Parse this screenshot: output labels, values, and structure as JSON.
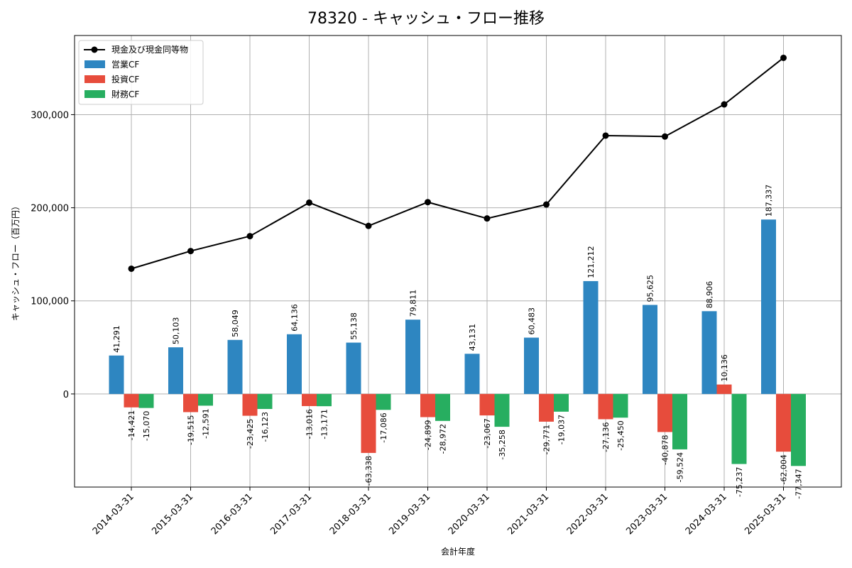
{
  "chart_data": {
    "type": "bar",
    "title": "78320 - キャッシュ・フロー推移",
    "xlabel": "会計年度",
    "ylabel": "キャッシュ・フロー（百万円）",
    "ylim": [
      -100000,
      385000
    ],
    "yticks": [
      0,
      100000,
      200000,
      300000
    ],
    "ytick_labels": [
      "0",
      "100,000",
      "200,000",
      "300,000"
    ],
    "grid": true,
    "legend_position": "top-left",
    "categories": [
      "2014-03-31",
      "2015-03-31",
      "2016-03-31",
      "2017-03-31",
      "2018-03-31",
      "2019-03-31",
      "2020-03-31",
      "2021-03-31",
      "2022-03-31",
      "2023-03-31",
      "2024-03-31",
      "2025-03-31"
    ],
    "line": {
      "name": "現金及び現金同等物",
      "color": "#000000",
      "values": [
        134500,
        153500,
        169500,
        205500,
        180500,
        206000,
        188500,
        203500,
        277500,
        276500,
        311000,
        361000
      ]
    },
    "series": [
      {
        "name": "営業CF",
        "color": "#2e86c1",
        "values": [
          41291,
          50103,
          58049,
          64136,
          55138,
          79811,
          43131,
          60483,
          121212,
          95625,
          88906,
          187337
        ],
        "labels": [
          "41,291",
          "50,103",
          "58,049",
          "64,136",
          "55,138",
          "79,811",
          "43,131",
          "60,483",
          "121,212",
          "95,625",
          "88,906",
          "187,337"
        ]
      },
      {
        "name": "投資CF",
        "color": "#e74c3c",
        "values": [
          -14421,
          -19515,
          -23425,
          -13016,
          -63338,
          -24899,
          -23067,
          -29771,
          -27136,
          -40878,
          10136,
          -62004
        ],
        "labels": [
          "-14,421",
          "-19,515",
          "-23,425",
          "-13,016",
          "-63,338",
          "-24,899",
          "-23,067",
          "-29,771",
          "-27,136",
          "-40,878",
          "10,136",
          "-62,004"
        ]
      },
      {
        "name": "財務CF",
        "color": "#27ae60",
        "values": [
          -15070,
          -12591,
          -16123,
          -13171,
          -17086,
          -28972,
          -35258,
          -19037,
          -25450,
          -59524,
          -75237,
          -77347
        ],
        "labels": [
          "-15,070",
          "-12,591",
          "-16,123",
          "-13,171",
          "-17,086",
          "-28,972",
          "-35,258",
          "-19,037",
          "-25,450",
          "-59,524",
          "-75,237",
          "-77,347"
        ]
      }
    ]
  }
}
